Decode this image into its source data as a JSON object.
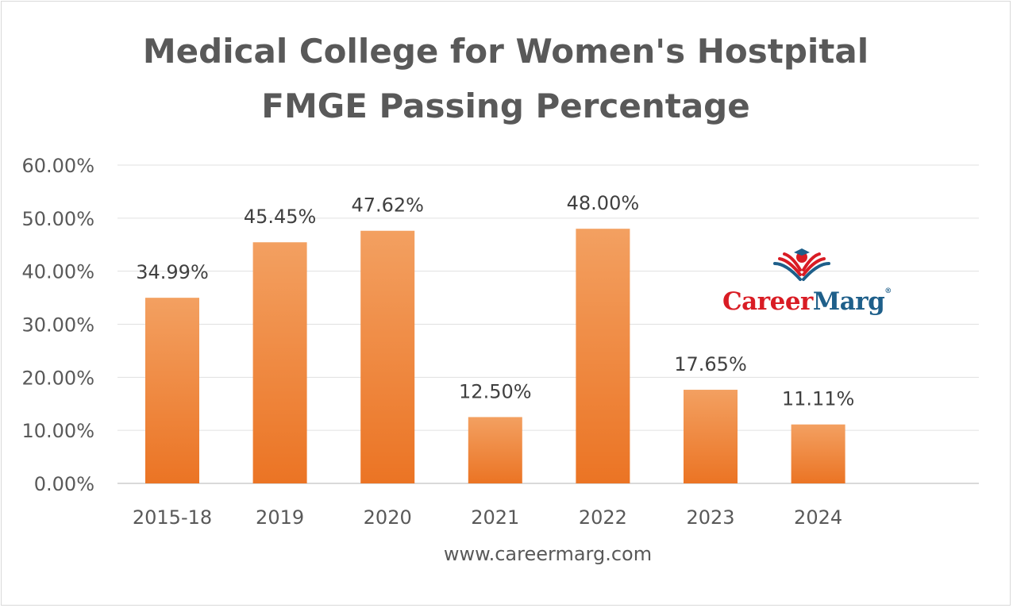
{
  "chart_data": {
    "type": "bar",
    "title_lines": [
      "Medical College for Women's Hostpital",
      "FMGE Passing  Percentage"
    ],
    "categories": [
      "2015-18",
      "2019",
      "2020",
      "2021",
      "2022",
      "2023",
      "2024"
    ],
    "values": [
      34.99,
      45.45,
      47.62,
      12.5,
      48.0,
      17.65,
      11.11
    ],
    "data_labels": [
      "34.99%",
      "45.45%",
      "47.62%",
      "12.50%",
      "48.00%",
      "17.65%",
      "11.11%"
    ],
    "ylim": [
      0,
      60
    ],
    "yticks": [
      0,
      10,
      20,
      30,
      40,
      50,
      60
    ],
    "ytick_labels": [
      "0.00%",
      "10.00%",
      "20.00%",
      "30.00%",
      "40.00%",
      "50.00%",
      "60.00%"
    ],
    "xlabel": "www.careermarg.com",
    "ylabel": "",
    "grid": true,
    "legend": "none"
  },
  "logo": {
    "text_part1": "Career",
    "text_part2": "Marg",
    "trademark": "®"
  },
  "colors": {
    "bar_top": "#f3a061",
    "bar_bottom": "#eb7424",
    "gridline": "#e0e0e0",
    "axis": "#d9d9d9",
    "logo_red": "#d91c24",
    "logo_blue": "#1e5f8a"
  }
}
